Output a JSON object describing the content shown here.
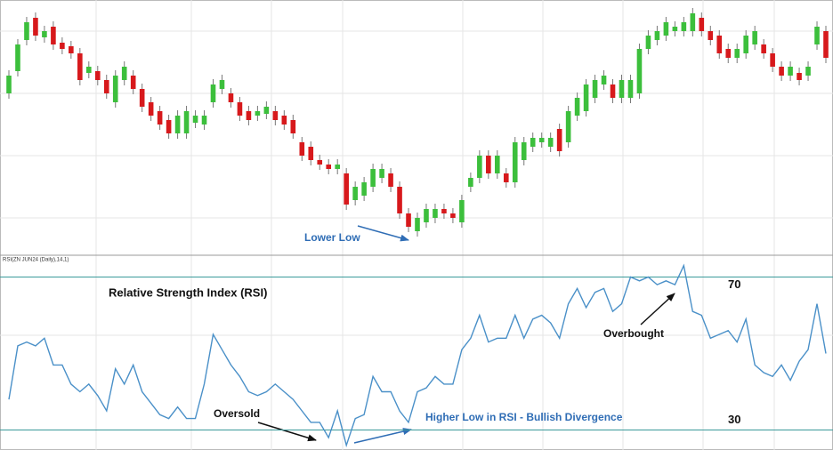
{
  "chart_data": [
    {
      "type": "candlestick",
      "annotations": [
        "Lower Low"
      ],
      "up_color": "#3cbf3c",
      "down_color": "#d7191c",
      "annotation_color": "#2f6db5",
      "ylim": [
        15,
        300
      ],
      "open": [
        195,
        220,
        255,
        280,
        258,
        270,
        252,
        248,
        240,
        218,
        220,
        210,
        185,
        210,
        215,
        200,
        185,
        175,
        165,
        150,
        150,
        162,
        160,
        185,
        200,
        195,
        185,
        175,
        170,
        172,
        175,
        170,
        165,
        140,
        135,
        120,
        115,
        110,
        105,
        75,
        80,
        90,
        100,
        105,
        90,
        60,
        40,
        50,
        55,
        65,
        60,
        50,
        90,
        100,
        125,
        105,
        105,
        95,
        120,
        135,
        140,
        135,
        155,
        140,
        170,
        175,
        190,
        205,
        205,
        190,
        190,
        195,
        245,
        255,
        260,
        265,
        265,
        265,
        280,
        265,
        260,
        245,
        235,
        240,
        250,
        250,
        240,
        225,
        215,
        218,
        215,
        250,
        265
      ],
      "close": [
        215,
        250,
        275,
        260,
        265,
        250,
        245,
        240,
        210,
        225,
        210,
        195,
        215,
        225,
        200,
        180,
        170,
        160,
        150,
        170,
        175,
        170,
        170,
        205,
        210,
        185,
        170,
        165,
        175,
        180,
        165,
        160,
        150,
        125,
        120,
        115,
        110,
        115,
        70,
        90,
        95,
        110,
        110,
        90,
        60,
        45,
        55,
        65,
        65,
        60,
        55,
        75,
        100,
        125,
        105,
        125,
        95,
        140,
        140,
        145,
        145,
        145,
        130,
        175,
        190,
        205,
        210,
        215,
        190,
        210,
        210,
        245,
        260,
        265,
        275,
        270,
        275,
        285,
        265,
        255,
        240,
        235,
        245,
        260,
        265,
        240,
        225,
        215,
        225,
        210,
        225,
        270,
        235
      ],
      "high": [
        221,
        256,
        281,
        286,
        271,
        276,
        258,
        254,
        246,
        231,
        226,
        216,
        221,
        231,
        221,
        206,
        191,
        181,
        171,
        176,
        181,
        176,
        176,
        211,
        216,
        201,
        191,
        181,
        181,
        186,
        181,
        176,
        171,
        146,
        141,
        126,
        121,
        121,
        111,
        96,
        101,
        116,
        116,
        111,
        96,
        66,
        61,
        71,
        71,
        71,
        66,
        81,
        106,
        131,
        131,
        131,
        111,
        146,
        146,
        151,
        151,
        151,
        161,
        181,
        196,
        211,
        216,
        221,
        211,
        216,
        216,
        251,
        266,
        271,
        281,
        276,
        281,
        291,
        286,
        271,
        266,
        251,
        251,
        266,
        271,
        256,
        246,
        231,
        231,
        224,
        231,
        276,
        271
      ],
      "low": [
        189,
        214,
        249,
        254,
        252,
        244,
        239,
        234,
        204,
        212,
        204,
        189,
        179,
        204,
        194,
        174,
        164,
        154,
        144,
        144,
        144,
        156,
        154,
        179,
        194,
        179,
        164,
        159,
        164,
        166,
        159,
        154,
        144,
        119,
        114,
        109,
        104,
        104,
        64,
        69,
        74,
        84,
        94,
        84,
        54,
        39,
        34,
        44,
        49,
        54,
        49,
        44,
        84,
        94,
        99,
        99,
        89,
        89,
        114,
        129,
        134,
        129,
        124,
        134,
        164,
        169,
        184,
        199,
        184,
        184,
        184,
        189,
        239,
        249,
        254,
        259,
        259,
        259,
        259,
        249,
        234,
        229,
        229,
        234,
        244,
        234,
        219,
        209,
        209,
        204,
        209,
        244,
        229
      ]
    },
    {
      "type": "line",
      "title": "Relative Strength Index (RSI)",
      "subtitle": "RSI(ZN JUN24 (Daily),14,1)",
      "annotations": [
        "Oversold",
        "Higher Low in RSI - Bullish Divergence",
        "Overbought"
      ],
      "color": "#4a90c8",
      "reference_color": "#3a9a9a",
      "annotation_color": "#2f6db5",
      "ylim": [
        25,
        75
      ],
      "yticks": [
        30,
        70
      ],
      "values": [
        38,
        52,
        53,
        52,
        54,
        47,
        47,
        42,
        40,
        42,
        39,
        35,
        46,
        42,
        47,
        40,
        37,
        34,
        33,
        36,
        33,
        33,
        42,
        55,
        51,
        47,
        44,
        40,
        39,
        40,
        42,
        40,
        38,
        35,
        32,
        32,
        28,
        35,
        26,
        33,
        34,
        44,
        40,
        40,
        35,
        32,
        40,
        41,
        44,
        42,
        42,
        51,
        54,
        60,
        53,
        54,
        54,
        60,
        54,
        59,
        60,
        58,
        54,
        63,
        67,
        62,
        66,
        67,
        61,
        63,
        70,
        69,
        70,
        68,
        69,
        68,
        73,
        61,
        60,
        54,
        55,
        56,
        53,
        59,
        47,
        45,
        44,
        47,
        43,
        48,
        51,
        63,
        50
      ]
    }
  ]
}
